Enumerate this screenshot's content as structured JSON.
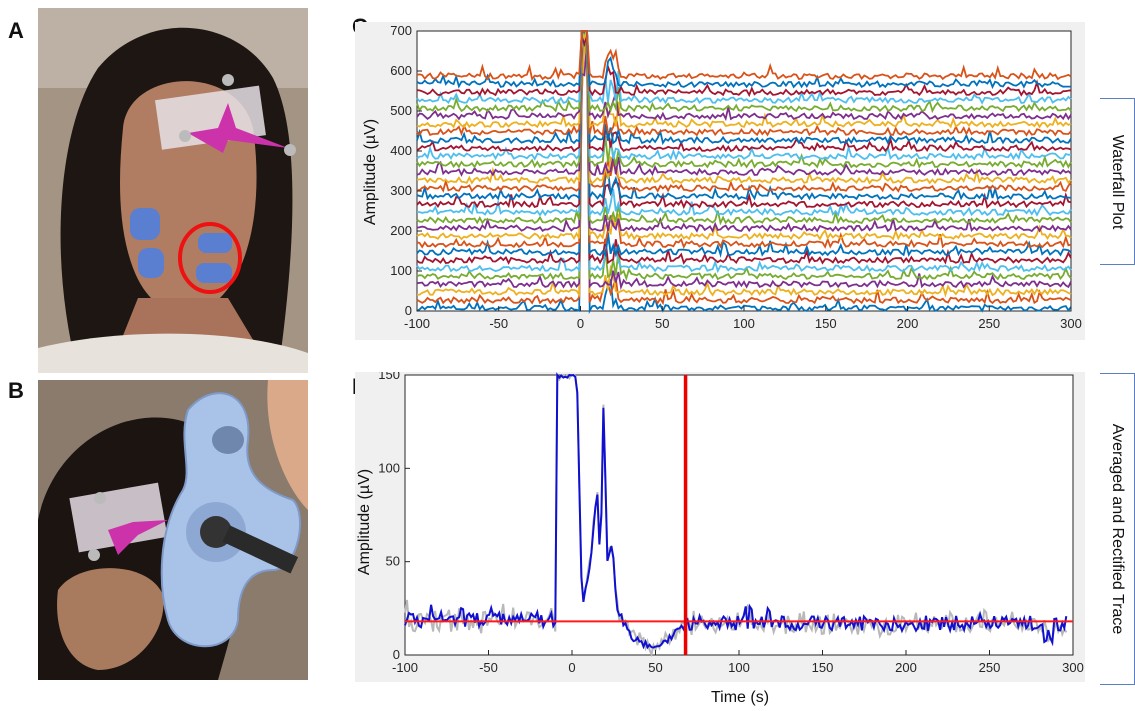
{
  "panels": {
    "A": "A",
    "B": "B",
    "C": "C",
    "D": "D"
  },
  "photos": {
    "a_desc_icon": "face-electrodes-photo",
    "b_desc_icon": "tms-coil-photo"
  },
  "colors": {
    "frame_bg": "#f0f0f0",
    "avg_trace": "#1010d0",
    "avg_trace_shadow": "#b8b8b8",
    "threshold_line": "#ff1a1a",
    "marker_line": "#ee0000",
    "label_border": "#5b7fc7"
  },
  "chart_data": [
    {
      "type": "line",
      "side_label": "Waterfall Plot",
      "xlabel": "",
      "ylabel": "Amplitude (µV)",
      "xlim": [
        -100,
        300
      ],
      "ylim": [
        0,
        700
      ],
      "xticks": [
        "-100",
        "-50",
        "0",
        "50",
        "100",
        "150",
        "200",
        "250",
        "300"
      ],
      "yticks": [
        "0",
        "100",
        "200",
        "300",
        "400",
        "500",
        "600",
        "700"
      ],
      "n_traces": 30,
      "trace_spacing": 20,
      "trace_colors": [
        "#0072bd",
        "#d95319",
        "#edb120",
        "#7e2f8e",
        "#77ac30",
        "#4dbeee",
        "#a2142f"
      ],
      "stimulus_time": 2,
      "response_peak_time": 20
    },
    {
      "type": "line",
      "side_label": "Averaged and Rectified Trace",
      "xlabel": "Time (s)",
      "ylabel": "Amplitude (µV)",
      "xlim": [
        -100,
        300
      ],
      "ylim": [
        0,
        150
      ],
      "xticks": [
        "-100",
        "-50",
        "0",
        "50",
        "100",
        "150",
        "200",
        "250",
        "300"
      ],
      "yticks": [
        "0",
        "50",
        "100",
        "150"
      ],
      "baseline_level": 18,
      "marker_x": 68,
      "key_points": [
        {
          "x": -10,
          "y": 16
        },
        {
          "x": -9,
          "y": 150
        },
        {
          "x": 0,
          "y": 150
        },
        {
          "x": 3,
          "y": 150
        },
        {
          "x": 6,
          "y": 25
        },
        {
          "x": 11,
          "y": 50
        },
        {
          "x": 15,
          "y": 90
        },
        {
          "x": 17,
          "y": 45
        },
        {
          "x": 19,
          "y": 142
        },
        {
          "x": 21,
          "y": 48
        },
        {
          "x": 24,
          "y": 60
        },
        {
          "x": 27,
          "y": 25
        },
        {
          "x": 35,
          "y": 10
        },
        {
          "x": 48,
          "y": 4
        },
        {
          "x": 60,
          "y": 10
        },
        {
          "x": 67,
          "y": 16
        }
      ],
      "noise_points": [
        {
          "x": 105,
          "y": 27
        },
        {
          "x": 118,
          "y": 26
        },
        {
          "x": 180,
          "y": 20
        },
        {
          "x": 245,
          "y": 22
        },
        {
          "x": 285,
          "y": 10
        }
      ]
    }
  ]
}
